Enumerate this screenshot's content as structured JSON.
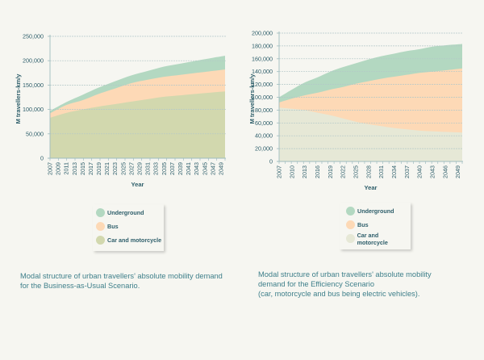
{
  "colors": {
    "underground": "#b3d8c1",
    "bus": "#fdd9b6",
    "car_left": "#d2d8ae",
    "car_right": "#e6e8d6",
    "grid": "#b3c7c8",
    "axis": "#9fbcbf"
  },
  "chart_data": [
    {
      "id": "bau",
      "type": "area",
      "stacked": true,
      "title": "",
      "xlabel": "Year",
      "ylabel": "M travellers-km/y",
      "ylim": [
        0,
        250000
      ],
      "yticks": [
        0,
        50000,
        100000,
        150000,
        200000,
        250000
      ],
      "ytick_labels": [
        "0",
        "50,000",
        "100,000",
        "150,000",
        "200,000",
        "250,000"
      ],
      "xlim": [
        2007,
        2050
      ],
      "xtick_labels": [
        "2007",
        "2009",
        "2011",
        "2013",
        "2015",
        "2017",
        "2019",
        "2021",
        "2023",
        "2025",
        "2027",
        "2029",
        "2031",
        "2033",
        "2035",
        "2037",
        "2039",
        "2041",
        "2043",
        "2045",
        "2047",
        "2049"
      ],
      "grid": true,
      "x": [
        2007,
        2011,
        2015,
        2019,
        2023,
        2027,
        2031,
        2035,
        2039,
        2043,
        2047,
        2050
      ],
      "series": [
        {
          "name": "Car and motorcycle",
          "color_key": "car_left",
          "values": [
            83000,
            93000,
            100000,
            106000,
            111000,
            116000,
            121000,
            126000,
            129000,
            132000,
            135000,
            137000
          ]
        },
        {
          "name": "Bus",
          "color_key": "bus",
          "values": [
            9000,
            16000,
            19000,
            26000,
            32000,
            38000,
            40000,
            41000,
            42000,
            43000,
            44000,
            45000
          ]
        },
        {
          "name": "Underground",
          "color_key": "underground",
          "values": [
            5000,
            6000,
            11000,
            13000,
            15000,
            16000,
            18000,
            21000,
            23000,
            25000,
            27000,
            28000
          ]
        }
      ],
      "legend_order": [
        "Underground",
        "Bus",
        "Car and motorcycle"
      ],
      "legend": "bottom",
      "caption": "Modal structure of urban  travellers' absolute mobility demand\nfor the Business-as-Usual Scenario."
    },
    {
      "id": "efficiency",
      "type": "area",
      "stacked": true,
      "title": "",
      "xlabel": "Year",
      "ylabel": "M travellers-km/y",
      "ylim": [
        0,
        200000
      ],
      "yticks": [
        0,
        20000,
        40000,
        60000,
        80000,
        100000,
        120000,
        140000,
        160000,
        180000,
        200000
      ],
      "ytick_labels": [
        "0",
        "20,000",
        "40,000",
        "60,000",
        "80,000",
        "100,000",
        "120,000",
        "140,000",
        "160,000",
        "180,000",
        "200,000"
      ],
      "xlim": [
        2007,
        2050
      ],
      "xtick_labels": [
        "2007",
        "2010",
        "2013",
        "2016",
        "2019",
        "2022",
        "2025",
        "2028",
        "2031",
        "2034",
        "2037",
        "2040",
        "2043",
        "2046",
        "2049"
      ],
      "grid": true,
      "x": [
        2007,
        2010,
        2013,
        2016,
        2019,
        2022,
        2025,
        2028,
        2031,
        2034,
        2037,
        2040,
        2043,
        2046,
        2050
      ],
      "series": [
        {
          "name": "Car and motorcycle",
          "color_key": "car_right",
          "values": [
            84000,
            82000,
            80000,
            76000,
            72000,
            67000,
            62000,
            58000,
            55000,
            52000,
            50000,
            48000,
            47000,
            46000,
            45000
          ]
        },
        {
          "name": "Bus",
          "color_key": "bus",
          "values": [
            8000,
            16000,
            23000,
            31000,
            40000,
            49000,
            59000,
            67000,
            74000,
            80000,
            85000,
            90000,
            93000,
            96000,
            100000
          ]
        },
        {
          "name": "Underground",
          "color_key": "underground",
          "values": [
            8000,
            14000,
            20000,
            24000,
            28000,
            31000,
            32000,
            34000,
            35000,
            36000,
            37000,
            37000,
            39000,
            39000,
            38000
          ]
        }
      ],
      "legend_order": [
        "Underground",
        "Bus",
        "Car and motorcycle"
      ],
      "legend": "bottom",
      "caption": "Modal structure of urban travellers' absolute mobility\ndemand  for the Efficiency Scenario\n(car, motorcycle and bus being electric vehicles)."
    }
  ]
}
